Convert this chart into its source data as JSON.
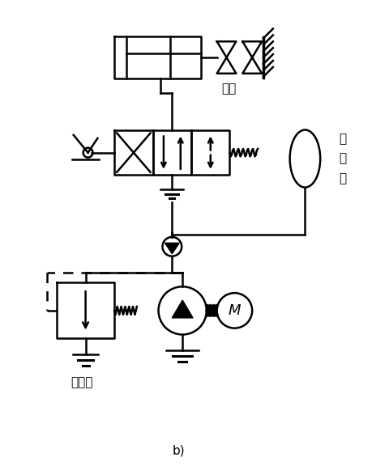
{
  "bg_color": "#ffffff",
  "line_color": "#000000",
  "label_vise": "虎鉗",
  "label_accumulator": "蓄\n能\n器",
  "label_unload": "卸荷阀",
  "label_bottom": "b)"
}
